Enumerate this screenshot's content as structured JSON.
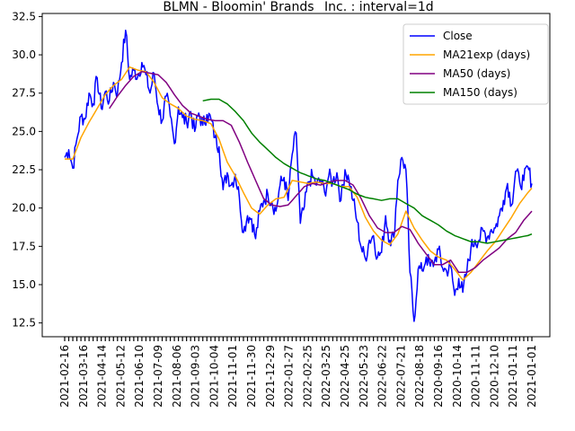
{
  "chart_data": {
    "type": "line",
    "title": "BLMN - Bloomin' Brands_ Inc. : interval=1d",
    "xlabel": "",
    "ylabel": "",
    "ylim": [
      11.6,
      32.7
    ],
    "yticks": [
      12.5,
      15.0,
      17.5,
      20.0,
      22.5,
      25.0,
      27.5,
      30.0,
      32.5
    ],
    "ytick_labels": [
      "12.5",
      "15.0",
      "17.5",
      "20.0",
      "22.5",
      "25.0",
      "27.5",
      "30.0",
      "32.5"
    ],
    "xtick_labels": [
      "2021-02-16",
      "2021-03-16",
      "2021-04-14",
      "2021-05-12",
      "2021-06-10",
      "2021-07-09",
      "2021-08-06",
      "2021-09-03",
      "2021-10-04",
      "2021-11-01",
      "2021-11-30",
      "2021-12-29",
      "2022-01-27",
      "2022-02-25",
      "2022-03-25",
      "2022-04-25",
      "2022-05-23",
      "2022-06-22",
      "2022-07-21",
      "2022-08-18",
      "2020-09-16",
      "2020-10-14",
      "2020-11-11",
      "2020-12-10",
      "2021-01-11",
      "2021-01-01"
    ],
    "grid": false,
    "legend_position": "top-right",
    "series": [
      {
        "name": "Close",
        "color": "#0000ff",
        "anchors": [
          [
            0,
            23.3
          ],
          [
            1,
            23.8
          ],
          [
            2,
            22.6
          ],
          [
            3,
            24.5
          ],
          [
            4,
            26
          ],
          [
            5,
            25.8
          ],
          [
            6,
            27.5
          ],
          [
            7,
            26.8
          ],
          [
            8,
            28.5
          ],
          [
            9,
            26.5
          ],
          [
            10,
            27.6
          ],
          [
            11,
            27
          ],
          [
            12,
            28.2
          ],
          [
            13,
            27.5
          ],
          [
            14,
            29.5
          ],
          [
            15,
            31.6
          ],
          [
            16,
            28.4
          ],
          [
            17,
            29
          ],
          [
            18,
            28.6
          ],
          [
            19,
            29.5
          ],
          [
            20,
            28.7
          ],
          [
            21,
            27.5
          ],
          [
            22,
            28.8
          ],
          [
            23,
            26.6
          ],
          [
            24,
            25.7
          ],
          [
            25,
            27.3
          ],
          [
            26,
            26
          ],
          [
            27,
            24.2
          ],
          [
            28,
            26.6
          ],
          [
            29,
            25.9
          ],
          [
            30,
            25.6
          ],
          [
            31,
            26.3
          ],
          [
            32,
            25
          ],
          [
            33,
            26.2
          ],
          [
            34,
            25.4
          ],
          [
            35,
            26.1
          ],
          [
            36,
            25.8
          ],
          [
            37,
            24.6
          ],
          [
            38,
            24
          ],
          [
            39,
            21.2
          ],
          [
            40,
            22.3
          ],
          [
            41,
            21.5
          ],
          [
            42,
            22.2
          ],
          [
            43,
            20.7
          ],
          [
            44,
            18.4
          ],
          [
            45,
            19.5
          ],
          [
            46,
            19.3
          ],
          [
            47,
            18
          ],
          [
            48,
            19.8
          ],
          [
            49,
            20.5
          ],
          [
            50,
            20.9
          ],
          [
            51,
            20.4
          ],
          [
            52,
            19.8
          ],
          [
            53,
            21.5
          ],
          [
            54,
            22
          ],
          [
            55,
            20.5
          ],
          [
            56,
            23.5
          ],
          [
            57,
            24.9
          ],
          [
            58,
            19
          ],
          [
            59,
            20.1
          ],
          [
            60,
            21.7
          ],
          [
            61,
            22.1
          ],
          [
            62,
            21.5
          ],
          [
            63,
            21.8
          ],
          [
            64,
            21
          ],
          [
            65,
            22.1
          ],
          [
            66,
            21.7
          ],
          [
            67,
            22.3
          ],
          [
            68,
            20.5
          ],
          [
            69,
            22.5
          ],
          [
            70,
            21.8
          ],
          [
            71,
            20.5
          ],
          [
            72,
            19.1
          ],
          [
            73,
            17.4
          ],
          [
            74,
            16.7
          ],
          [
            75,
            17.9
          ],
          [
            76,
            18.2
          ],
          [
            77,
            16.8
          ],
          [
            78,
            17.1
          ],
          [
            79,
            19.5
          ],
          [
            80,
            17.9
          ],
          [
            81,
            18.1
          ],
          [
            82,
            21.8
          ],
          [
            83,
            23.3
          ],
          [
            84,
            22.5
          ],
          [
            85,
            15.8
          ],
          [
            86,
            12.6
          ],
          [
            87,
            16
          ],
          [
            88,
            15.9
          ],
          [
            89,
            16.8
          ],
          [
            90,
            16.2
          ],
          [
            91,
            16.5
          ],
          [
            92,
            17.3
          ],
          [
            93,
            16.1
          ],
          [
            94,
            15.9
          ],
          [
            95,
            16.2
          ],
          [
            96,
            14.3
          ],
          [
            97,
            15.4
          ],
          [
            98,
            14.5
          ],
          [
            99,
            15.9
          ],
          [
            100,
            17.4
          ],
          [
            101,
            17.9
          ],
          [
            102,
            17.9
          ],
          [
            103,
            18.5
          ],
          [
            104,
            18.1
          ],
          [
            105,
            18.6
          ],
          [
            106,
            18.7
          ],
          [
            107,
            19.5
          ],
          [
            108,
            20.5
          ],
          [
            109,
            21.6
          ],
          [
            110,
            20.2
          ],
          [
            111,
            22.4
          ],
          [
            112,
            21.7
          ],
          [
            113,
            21.8
          ],
          [
            114,
            22.7
          ],
          [
            115,
            21.6
          ]
        ]
      },
      {
        "name": "MA21exp (days)",
        "color": "#ffa500",
        "anchors": [
          [
            0,
            23.2
          ],
          [
            2,
            23.2
          ],
          [
            4,
            24.6
          ],
          [
            6,
            25.6
          ],
          [
            8,
            26.5
          ],
          [
            10,
            27.4
          ],
          [
            12,
            28
          ],
          [
            14,
            28.4
          ],
          [
            16,
            29.2
          ],
          [
            18,
            29
          ],
          [
            20,
            28.9
          ],
          [
            22,
            28.2
          ],
          [
            24,
            27.2
          ],
          [
            26,
            26.8
          ],
          [
            28,
            26.5
          ],
          [
            30,
            26
          ],
          [
            32,
            25.8
          ],
          [
            34,
            25.7
          ],
          [
            36,
            25.5
          ],
          [
            38,
            24.5
          ],
          [
            40,
            23
          ],
          [
            42,
            22.1
          ],
          [
            44,
            21
          ],
          [
            46,
            20
          ],
          [
            48,
            19.6
          ],
          [
            50,
            20.2
          ],
          [
            52,
            20.6
          ],
          [
            54,
            20.7
          ],
          [
            56,
            21.8
          ],
          [
            58,
            21.7
          ],
          [
            60,
            21.6
          ],
          [
            62,
            21.7
          ],
          [
            64,
            21.6
          ],
          [
            66,
            21.6
          ],
          [
            68,
            21.4
          ],
          [
            70,
            21.4
          ],
          [
            72,
            20.7
          ],
          [
            74,
            19.4
          ],
          [
            76,
            18.5
          ],
          [
            78,
            17.9
          ],
          [
            80,
            17.6
          ],
          [
            82,
            18.3
          ],
          [
            84,
            19.8
          ],
          [
            86,
            18.7
          ],
          [
            88,
            17.9
          ],
          [
            90,
            17.2
          ],
          [
            92,
            16.8
          ],
          [
            94,
            16.6
          ],
          [
            96,
            16
          ],
          [
            98,
            15.3
          ],
          [
            100,
            15.8
          ],
          [
            102,
            16.5
          ],
          [
            104,
            17.2
          ],
          [
            106,
            17.8
          ],
          [
            108,
            18.6
          ],
          [
            110,
            19.4
          ],
          [
            112,
            20.3
          ],
          [
            114,
            21
          ],
          [
            115,
            21.3
          ]
        ]
      },
      {
        "name": "MA50 (days)",
        "color": "#800080",
        "anchors": [
          [
            11,
            26.5
          ],
          [
            13,
            27.3
          ],
          [
            15,
            28
          ],
          [
            17,
            28.6
          ],
          [
            19,
            28.9
          ],
          [
            21,
            28.8
          ],
          [
            23,
            28.7
          ],
          [
            25,
            28.2
          ],
          [
            27,
            27.4
          ],
          [
            29,
            26.7
          ],
          [
            31,
            26.2
          ],
          [
            33,
            26
          ],
          [
            35,
            25.8
          ],
          [
            37,
            25.7
          ],
          [
            39,
            25.7
          ],
          [
            41,
            25.4
          ],
          [
            43,
            24.3
          ],
          [
            45,
            23
          ],
          [
            47,
            21.8
          ],
          [
            49,
            20.6
          ],
          [
            51,
            20.2
          ],
          [
            53,
            20.1
          ],
          [
            55,
            20.2
          ],
          [
            57,
            20.8
          ],
          [
            59,
            21.4
          ],
          [
            61,
            21.6
          ],
          [
            63,
            21.5
          ],
          [
            65,
            21.7
          ],
          [
            67,
            21.8
          ],
          [
            69,
            21.8
          ],
          [
            71,
            21.5
          ],
          [
            73,
            20.6
          ],
          [
            75,
            19.5
          ],
          [
            77,
            18.7
          ],
          [
            79,
            18.4
          ],
          [
            81,
            18.4
          ],
          [
            83,
            18.8
          ],
          [
            85,
            18.6
          ],
          [
            87,
            17.7
          ],
          [
            89,
            17
          ],
          [
            91,
            16.3
          ],
          [
            93,
            16.3
          ],
          [
            95,
            16.6
          ],
          [
            97,
            15.8
          ],
          [
            99,
            15.8
          ],
          [
            101,
            16.1
          ],
          [
            103,
            16.6
          ],
          [
            105,
            17
          ],
          [
            107,
            17.4
          ],
          [
            109,
            18
          ],
          [
            111,
            18.4
          ],
          [
            113,
            19.2
          ],
          [
            115,
            19.8
          ]
        ]
      },
      {
        "name": "MA150 (days)",
        "color": "#008000",
        "anchors": [
          [
            34,
            27
          ],
          [
            36,
            27.1
          ],
          [
            38,
            27.1
          ],
          [
            40,
            26.8
          ],
          [
            42,
            26.3
          ],
          [
            44,
            25.7
          ],
          [
            46,
            24.9
          ],
          [
            48,
            24.3
          ],
          [
            50,
            23.8
          ],
          [
            52,
            23.3
          ],
          [
            54,
            22.9
          ],
          [
            56,
            22.6
          ],
          [
            58,
            22.3
          ],
          [
            60,
            22.1
          ],
          [
            62,
            21.9
          ],
          [
            64,
            21.8
          ],
          [
            66,
            21.6
          ],
          [
            68,
            21.4
          ],
          [
            70,
            21.2
          ],
          [
            72,
            20.9
          ],
          [
            74,
            20.7
          ],
          [
            76,
            20.6
          ],
          [
            78,
            20.5
          ],
          [
            80,
            20.6
          ],
          [
            82,
            20.6
          ],
          [
            84,
            20.3
          ],
          [
            86,
            20
          ],
          [
            88,
            19.5
          ],
          [
            90,
            19.2
          ],
          [
            92,
            18.9
          ],
          [
            94,
            18.5
          ],
          [
            96,
            18.2
          ],
          [
            98,
            18
          ],
          [
            100,
            17.8
          ],
          [
            102,
            17.8
          ],
          [
            104,
            17.7
          ],
          [
            106,
            17.8
          ],
          [
            108,
            17.9
          ],
          [
            110,
            18
          ],
          [
            112,
            18.1
          ],
          [
            114,
            18.2
          ],
          [
            115,
            18.3
          ]
        ]
      }
    ]
  }
}
